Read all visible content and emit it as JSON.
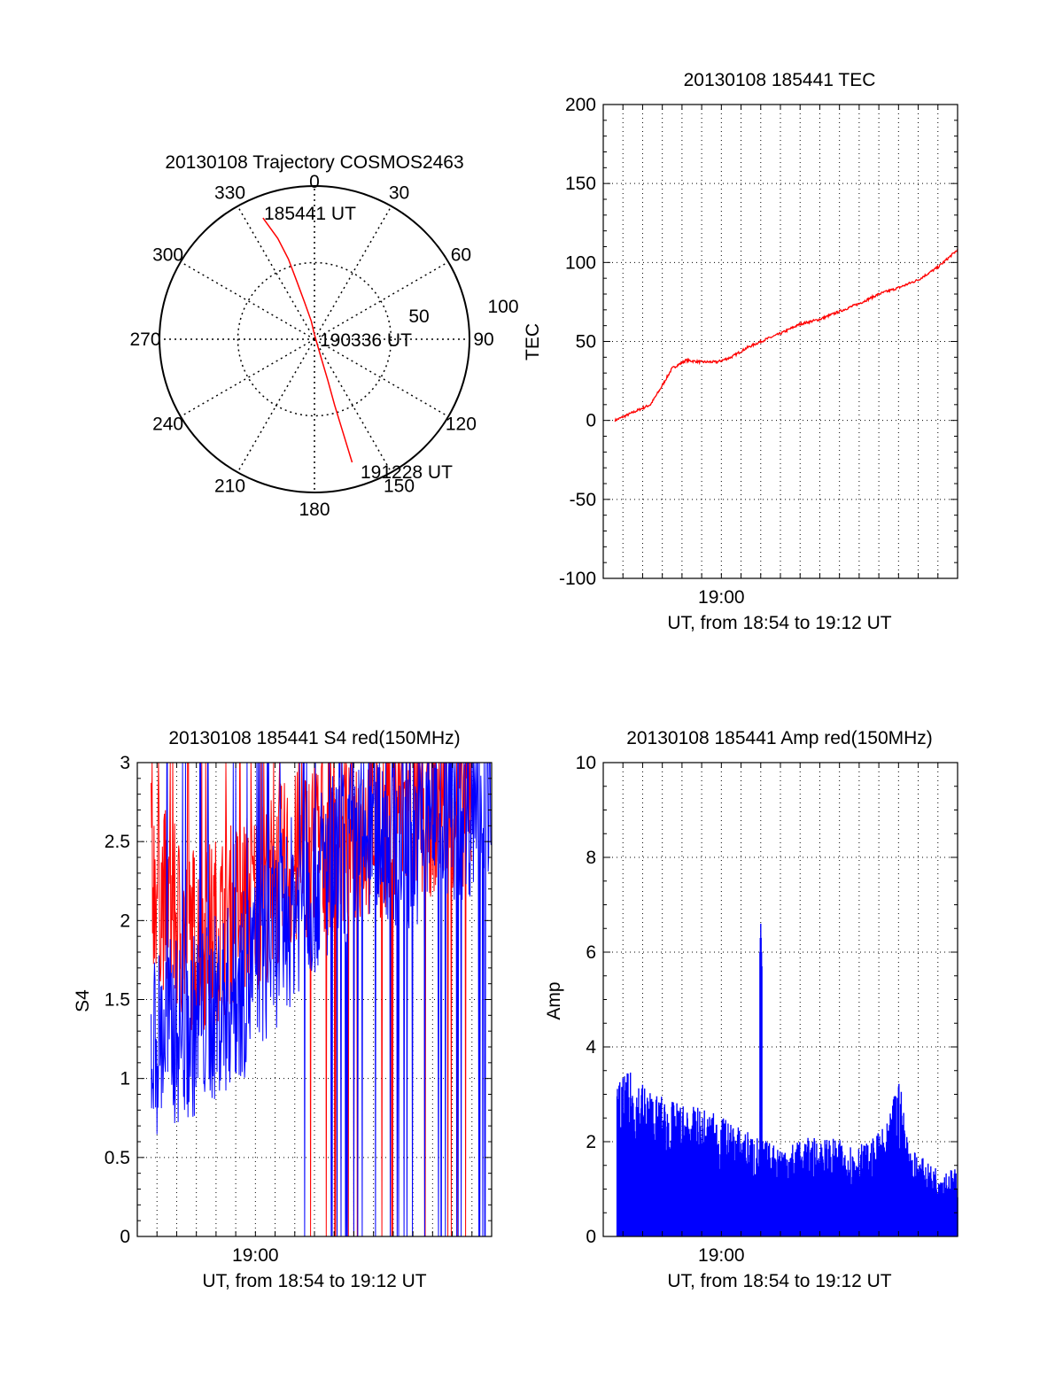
{
  "chart_data": [
    {
      "type": "polar-trajectory",
      "title": "20130108 Trajectory COSMOS2463",
      "angle_labels": [
        "0",
        "30",
        "60",
        "90",
        "120",
        "150",
        "180",
        "210",
        "240",
        "270",
        "300",
        "330"
      ],
      "radius_labels": [
        "50",
        "100"
      ],
      "rmax": 100,
      "series": [
        {
          "color": "#ff0000",
          "points": [
            {
              "az": 337,
              "el_r": 86
            },
            {
              "az": 340,
              "el_r": 70
            },
            {
              "az": 342,
              "el_r": 55
            },
            {
              "az": 343,
              "el_r": 40
            },
            {
              "az": 345,
              "el_r": 25
            },
            {
              "az": 350,
              "el_r": 12
            },
            {
              "az": 0,
              "el_r": 3
            },
            {
              "az": 160,
              "el_r": 12
            },
            {
              "az": 162,
              "el_r": 28
            },
            {
              "az": 163,
              "el_r": 45
            },
            {
              "az": 163,
              "el_r": 62
            },
            {
              "az": 163,
              "el_r": 84
            }
          ]
        }
      ],
      "annotations": [
        "185441 UT",
        "190336 UT",
        "191228 UT"
      ]
    },
    {
      "type": "line",
      "title": "20130108 185441 TEC",
      "xlabel": "UT, from 18:54 to 19:12 UT",
      "ylabel": "TEC",
      "xlim": [
        0,
        18
      ],
      "ylim": [
        -100,
        200
      ],
      "yticks": [
        -100,
        -50,
        0,
        50,
        100,
        150,
        200
      ],
      "xticks": [
        {
          "value": 6,
          "label": "19:00"
        }
      ],
      "grid": true,
      "series": [
        {
          "color": "#ff0000",
          "x": [
            0.6,
            1.5,
            2.4,
            2.9,
            3.5,
            4.2,
            5.0,
            5.8,
            6.5,
            7.3,
            8.2,
            9.0,
            10.0,
            11.0,
            12.0,
            13.0,
            14.0,
            15.0,
            16.0,
            17.0,
            18.0
          ],
          "y": [
            0,
            5,
            10,
            20,
            33,
            38,
            37,
            37,
            40,
            46,
            51,
            55,
            61,
            64,
            69,
            74,
            80,
            84,
            89,
            97,
            108
          ]
        }
      ]
    },
    {
      "type": "line",
      "title": "20130108 185441 S4 red(150MHz)",
      "xlabel": "UT, from 18:54 to 19:12 UT",
      "ylabel": "S4",
      "xlim": [
        0,
        18
      ],
      "ylim": [
        0,
        3
      ],
      "yticks": [
        0,
        0.5,
        1,
        1.5,
        2,
        2.5,
        3
      ],
      "ytick_labels": [
        "0",
        "0.5",
        "1",
        "1.5",
        "2",
        "2.5",
        "3"
      ],
      "xticks": [
        {
          "value": 6,
          "label": "19:00"
        }
      ],
      "grid": true,
      "series": [
        {
          "color": "#ff0000",
          "x": [
            0.7,
            1.5,
            2.5,
            3.5,
            4.5,
            5.5,
            6.5,
            7.5,
            8.5,
            9.5,
            10.5,
            11.5,
            12.5,
            13.5,
            14.5,
            15.5,
            16.5
          ],
          "y": [
            2.3,
            2.1,
            1.9,
            1.9,
            2.0,
            2.1,
            2.2,
            2.3,
            2.4,
            2.5,
            2.5,
            2.6,
            2.6,
            2.7,
            2.7,
            2.8,
            2.8
          ]
        },
        {
          "color": "#0000ff",
          "x": [
            0.7,
            1.5,
            2.5,
            3.5,
            4.5,
            5.5,
            6.5,
            7.5,
            8.5,
            9.5,
            10.5,
            11.5,
            12.5,
            13.5,
            14.5,
            15.5,
            16.5,
            17.5
          ],
          "y": [
            1.2,
            1.3,
            1.3,
            1.4,
            1.5,
            1.6,
            1.8,
            2.0,
            2.2,
            2.3,
            2.4,
            2.5,
            2.6,
            2.5,
            2.6,
            2.7,
            2.7,
            2.8
          ]
        }
      ]
    },
    {
      "type": "bar",
      "title": "20130108 185441 Amp red(150MHz)",
      "xlabel": "UT, from 18:54 to 19:12 UT",
      "ylabel": "Amp",
      "xlim": [
        0,
        18
      ],
      "ylim": [
        0,
        10
      ],
      "yticks": [
        0,
        2,
        4,
        6,
        8,
        10
      ],
      "xticks": [
        {
          "value": 6,
          "label": "19:00"
        }
      ],
      "grid": true,
      "series": [
        {
          "color": "#0000ff",
          "x": [
            0.7,
            1.5,
            2.5,
            3.5,
            4.5,
            5.5,
            6.5,
            7.5,
            8.0,
            8.5,
            9.5,
            10.5,
            11.5,
            12.5,
            13.5,
            14.5,
            15.0,
            15.5,
            16.5,
            17.5
          ],
          "y": [
            3.0,
            3.2,
            2.8,
            2.6,
            2.5,
            2.4,
            2.2,
            2.0,
            6.6,
            1.8,
            1.8,
            1.9,
            1.9,
            1.8,
            1.8,
            2.2,
            3.2,
            1.8,
            1.4,
            1.3
          ]
        }
      ]
    }
  ]
}
